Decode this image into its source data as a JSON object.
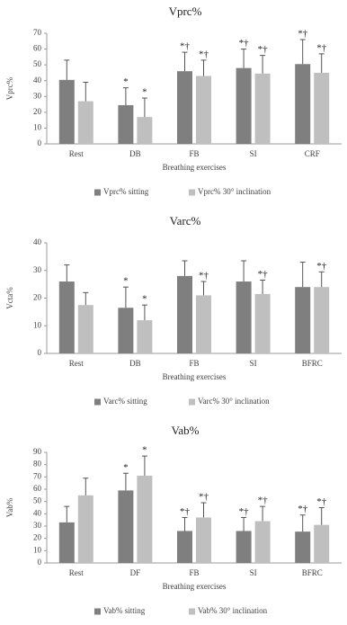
{
  "chart_data": [
    {
      "type": "bar",
      "title": "Vprc%",
      "ylabel": "Vprc%",
      "xlabel": "Breathing exercises",
      "categories": [
        "Rest",
        "DB",
        "FB",
        "SI",
        "CRF"
      ],
      "ylim": [
        0,
        70
      ],
      "yticks": [
        0,
        10,
        20,
        30,
        40,
        50,
        60,
        70
      ],
      "series": [
        {
          "name": "Vprc% sitting",
          "color": "#7f7f7f",
          "values": [
            40.5,
            24.5,
            46,
            48,
            50.5
          ],
          "errors": [
            12.5,
            11,
            12,
            12,
            15.5
          ],
          "annotations": [
            null,
            "*",
            "*†",
            "*†",
            "*†"
          ]
        },
        {
          "name": "Vprc% 30° inclination",
          "color": "#bfbfbf",
          "values": [
            27,
            17,
            43,
            44.5,
            45
          ],
          "errors": [
            12,
            12,
            10,
            11.5,
            12
          ],
          "annotations": [
            null,
            "*",
            "*†",
            "*†",
            "*†"
          ]
        }
      ]
    },
    {
      "type": "bar",
      "title": "Varc%",
      "ylabel": "Vcta%",
      "xlabel": "Breathing exercises",
      "categories": [
        "Rest",
        "DB",
        "FB",
        "SI",
        "BFRC"
      ],
      "ylim": [
        0,
        40
      ],
      "yticks": [
        0,
        10,
        20,
        30,
        40
      ],
      "series": [
        {
          "name": "Varc% sitting",
          "color": "#7f7f7f",
          "values": [
            26,
            16.5,
            28,
            26,
            24
          ],
          "errors": [
            6,
            7.5,
            5.5,
            7.5,
            9
          ],
          "annotations": [
            null,
            "*",
            null,
            null,
            null
          ]
        },
        {
          "name": "Varc% 30° inclination",
          "color": "#bfbfbf",
          "values": [
            17.5,
            12,
            21,
            21.5,
            24
          ],
          "errors": [
            4.5,
            5.5,
            5,
            5,
            5.5
          ],
          "annotations": [
            null,
            "*",
            "*†",
            "*†",
            "*†"
          ]
        }
      ]
    },
    {
      "type": "bar",
      "title": "Vab%",
      "ylabel": "Vab%",
      "xlabel": "Breathing exercises",
      "categories": [
        "Rest",
        "DF",
        "FB",
        "SI",
        "BFRC"
      ],
      "ylim": [
        0,
        90
      ],
      "yticks": [
        0,
        10,
        20,
        30,
        40,
        50,
        60,
        70,
        80,
        90
      ],
      "series": [
        {
          "name": "Vab% sitting",
          "color": "#7f7f7f",
          "values": [
            33,
            59,
            26,
            26,
            25.5
          ],
          "errors": [
            13,
            14,
            11,
            11,
            13.5
          ],
          "annotations": [
            null,
            "*",
            "*†",
            "*†",
            "*†"
          ]
        },
        {
          "name": "Vab% 30° inclination",
          "color": "#bfbfbf",
          "values": [
            55,
            71,
            37,
            34,
            31
          ],
          "errors": [
            14,
            16,
            12,
            12,
            14
          ],
          "annotations": [
            null,
            "*",
            "*†",
            "*†",
            "*†"
          ]
        }
      ]
    }
  ]
}
